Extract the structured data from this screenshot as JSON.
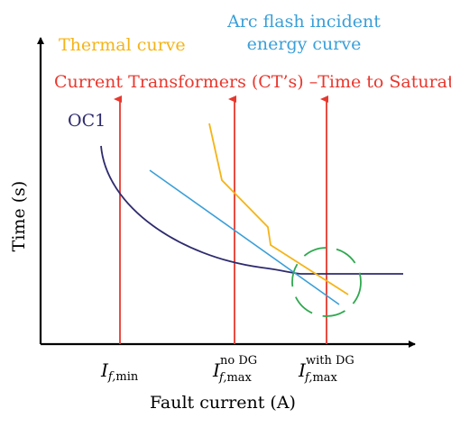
{
  "labels": {
    "thermal_curve": "Thermal curve",
    "arc_flash_line1": "Arc flash incident",
    "arc_flash_line2": "energy curve",
    "ct_saturation": "Current Transformers (CT’s) –Time to Saturation",
    "oc1": "OC1",
    "y_axis": "Time (s)",
    "x_axis": "Fault current (A)"
  },
  "ticks": {
    "min": {
      "main": "I",
      "sub": "f,",
      "sub2": "min",
      "sup": ""
    },
    "nodg": {
      "main": "I",
      "sub": "f,",
      "sub2": "max",
      "sup": "no DG"
    },
    "withdg": {
      "main": "I",
      "sub": "f,",
      "sub2": "max",
      "sup": "with DG"
    }
  },
  "colors": {
    "thermal": "#f5b417",
    "arc": "#3a9fd8",
    "ct": "#e8382e",
    "oc1": "#2e2b6e",
    "circle": "#2fa84f",
    "axis": "#000000"
  }
}
